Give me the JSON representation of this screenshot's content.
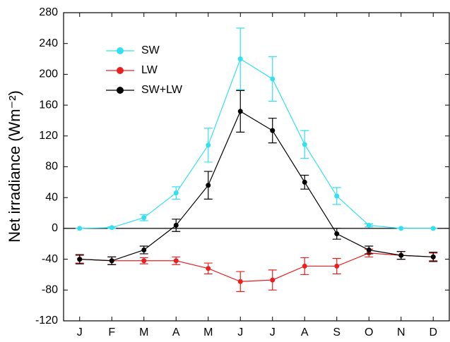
{
  "chart_data": {
    "type": "line",
    "y_label": "Net irradiance (Wm⁻²)",
    "categories": [
      "J",
      "F",
      "M",
      "A",
      "M",
      "J",
      "J",
      "A",
      "S",
      "O",
      "N",
      "D"
    ],
    "series": [
      {
        "name": "SW",
        "color": "#33e0f0",
        "values": [
          0,
          1,
          14,
          46,
          108,
          220,
          194,
          109,
          42,
          4,
          0,
          0
        ],
        "errors": [
          0,
          1,
          4,
          8,
          22,
          40,
          29,
          18,
          11,
          2,
          0,
          0
        ]
      },
      {
        "name": "LW",
        "color": "#e82020",
        "values": [
          -40,
          -42,
          -42,
          -42,
          -52,
          -69,
          -67,
          -49,
          -49,
          -32,
          -35,
          -37
        ],
        "errors": [
          5,
          5,
          4,
          5,
          7,
          13,
          13,
          11,
          10,
          5,
          5,
          5
        ]
      },
      {
        "name": "SW+LW",
        "color": "#000000",
        "values": [
          -40,
          -42,
          -28,
          4,
          56,
          152,
          127,
          60,
          -7,
          -28,
          -35,
          -37
        ],
        "errors": [
          6,
          5,
          5,
          8,
          18,
          27,
          16,
          9,
          7,
          5,
          5,
          6
        ]
      }
    ],
    "ylim": [
      -120,
      280
    ],
    "yticks": [
      -120,
      -80,
      -40,
      0,
      40,
      80,
      120,
      160,
      200,
      240,
      280
    ],
    "legend": "upper left"
  }
}
